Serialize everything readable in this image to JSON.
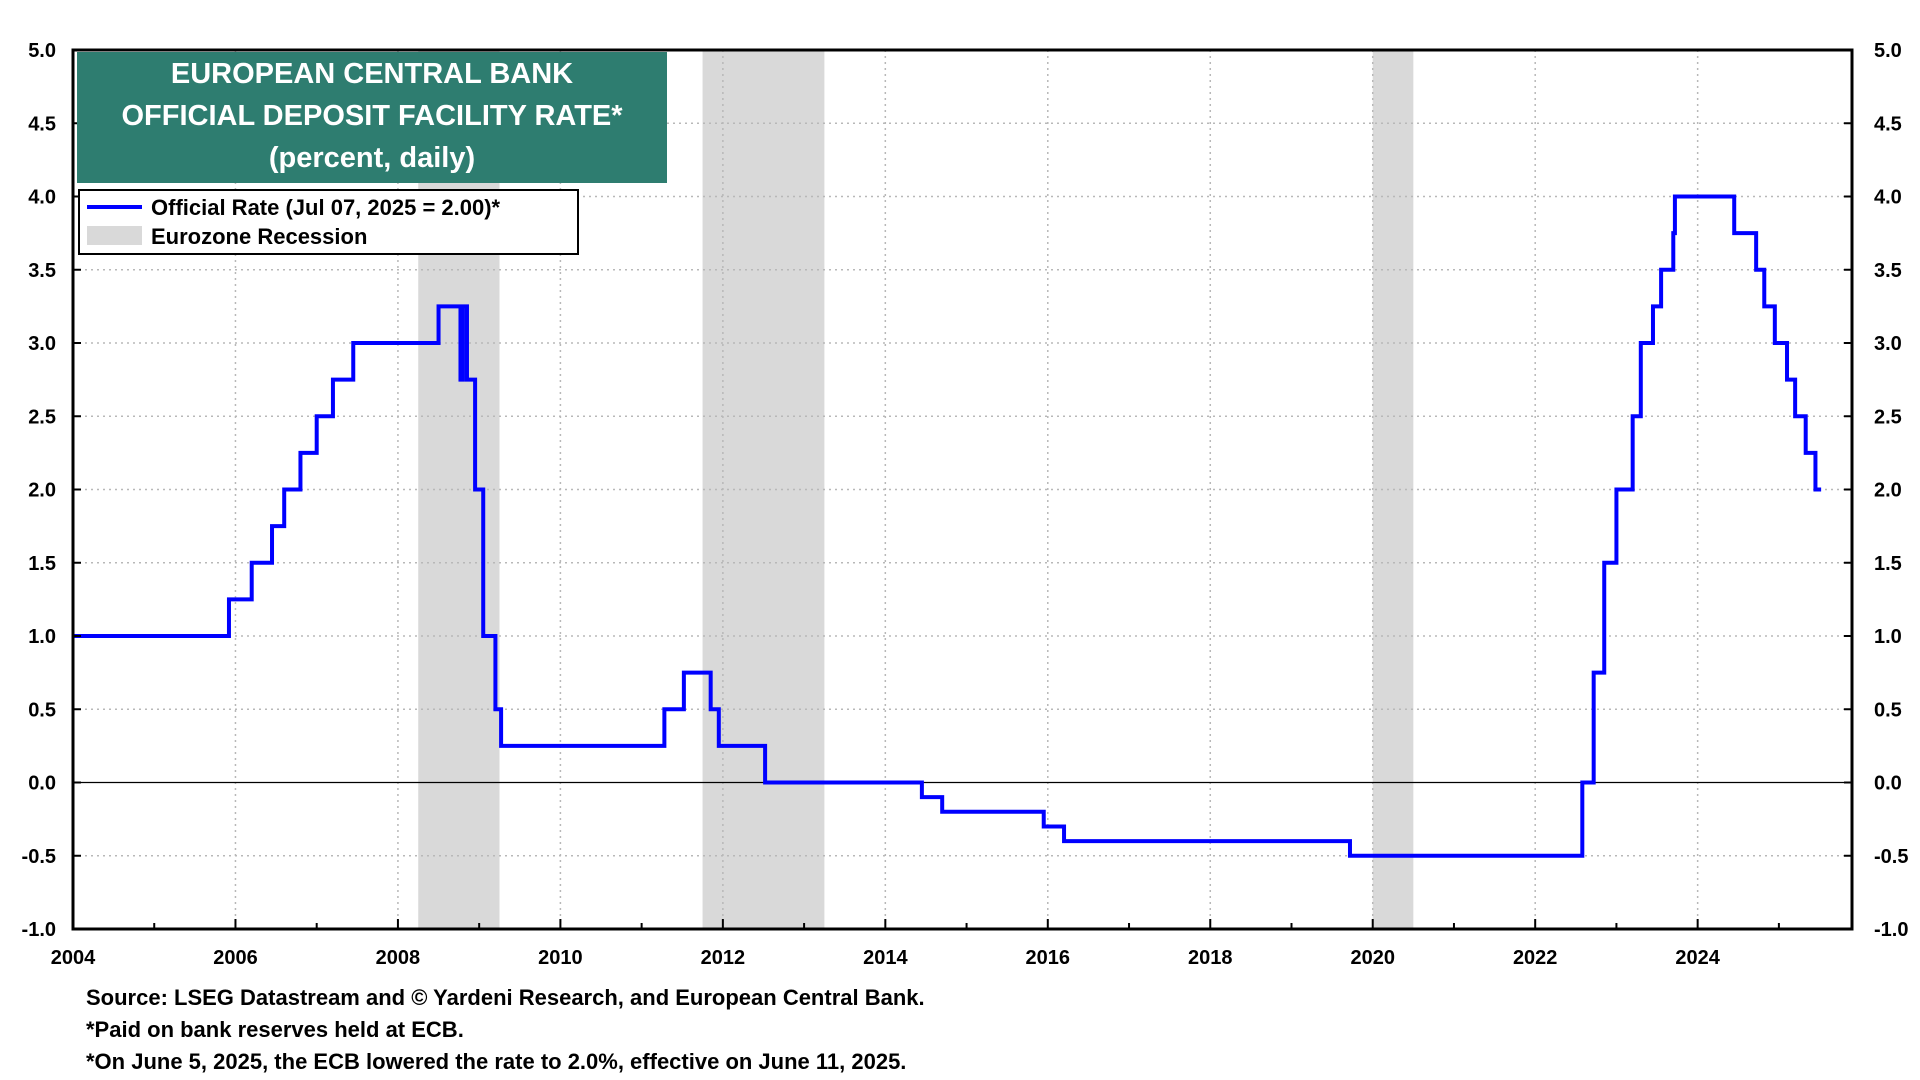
{
  "chart_data": {
    "type": "line",
    "title": [
      "EUROPEAN CENTRAL BANK",
      "OFFICIAL DEPOSIT FACILITY RATE*",
      "(percent, daily)"
    ],
    "xlim": [
      2004,
      2025.9
    ],
    "ylim": [
      -1.0,
      5.0
    ],
    "y_ticks": [
      -1.0,
      -0.5,
      0.0,
      0.5,
      1.0,
      1.5,
      2.0,
      2.5,
      3.0,
      3.5,
      4.0,
      4.5,
      5.0
    ],
    "x_ticks": [
      2004,
      2006,
      2008,
      2010,
      2012,
      2014,
      2016,
      2018,
      2020,
      2022,
      2024
    ],
    "grid": true,
    "legend_position": "top-left",
    "legend": [
      {
        "label": "Official Rate  (Jul 07, 2025 = 2.00)*",
        "kind": "line",
        "color": "#0000ff"
      },
      {
        "label": "Eurozone Recession",
        "kind": "band",
        "color": "#d9d9d9"
      }
    ],
    "recessions": [
      [
        2008.25,
        2009.25
      ],
      [
        2011.75,
        2013.25
      ],
      [
        2020.0,
        2020.5
      ]
    ],
    "series": [
      {
        "name": "Official Rate",
        "color": "#0000ff",
        "step": true,
        "points": [
          [
            2004.0,
            1.0
          ],
          [
            2005.92,
            1.25
          ],
          [
            2006.2,
            1.5
          ],
          [
            2006.45,
            1.75
          ],
          [
            2006.6,
            2.0
          ],
          [
            2006.8,
            2.25
          ],
          [
            2007.0,
            2.5
          ],
          [
            2007.2,
            2.75
          ],
          [
            2007.45,
            3.0
          ],
          [
            2008.5,
            3.25
          ],
          [
            2008.77,
            2.75
          ],
          [
            2008.8,
            3.25
          ],
          [
            2008.85,
            2.75
          ],
          [
            2008.95,
            2.0
          ],
          [
            2009.05,
            1.0
          ],
          [
            2009.2,
            0.5
          ],
          [
            2009.27,
            0.25
          ],
          [
            2011.28,
            0.5
          ],
          [
            2011.52,
            0.75
          ],
          [
            2011.85,
            0.5
          ],
          [
            2011.95,
            0.25
          ],
          [
            2012.52,
            0.0
          ],
          [
            2014.45,
            -0.1
          ],
          [
            2014.7,
            -0.2
          ],
          [
            2015.95,
            -0.3
          ],
          [
            2016.2,
            -0.4
          ],
          [
            2019.72,
            -0.5
          ],
          [
            2022.58,
            0.0
          ],
          [
            2022.72,
            0.75
          ],
          [
            2022.85,
            1.5
          ],
          [
            2023.0,
            2.0
          ],
          [
            2023.2,
            2.5
          ],
          [
            2023.3,
            3.0
          ],
          [
            2023.45,
            3.25
          ],
          [
            2023.55,
            3.5
          ],
          [
            2023.7,
            3.75
          ],
          [
            2023.72,
            4.0
          ],
          [
            2024.45,
            3.75
          ],
          [
            2024.72,
            3.5
          ],
          [
            2024.82,
            3.25
          ],
          [
            2024.95,
            3.0
          ],
          [
            2025.1,
            2.75
          ],
          [
            2025.2,
            2.5
          ],
          [
            2025.33,
            2.25
          ],
          [
            2025.45,
            2.0
          ],
          [
            2025.52,
            2.0
          ]
        ]
      }
    ]
  },
  "footnotes": {
    "source": "Source: LSEG Datastream and © Yardeni Research, and European Central Bank.",
    "note1": "*Paid on bank reserves held at ECB.",
    "note2": "*On June 5, 2025, the ECB lowered the rate to 2.0%, effective on June 11, 2025."
  }
}
